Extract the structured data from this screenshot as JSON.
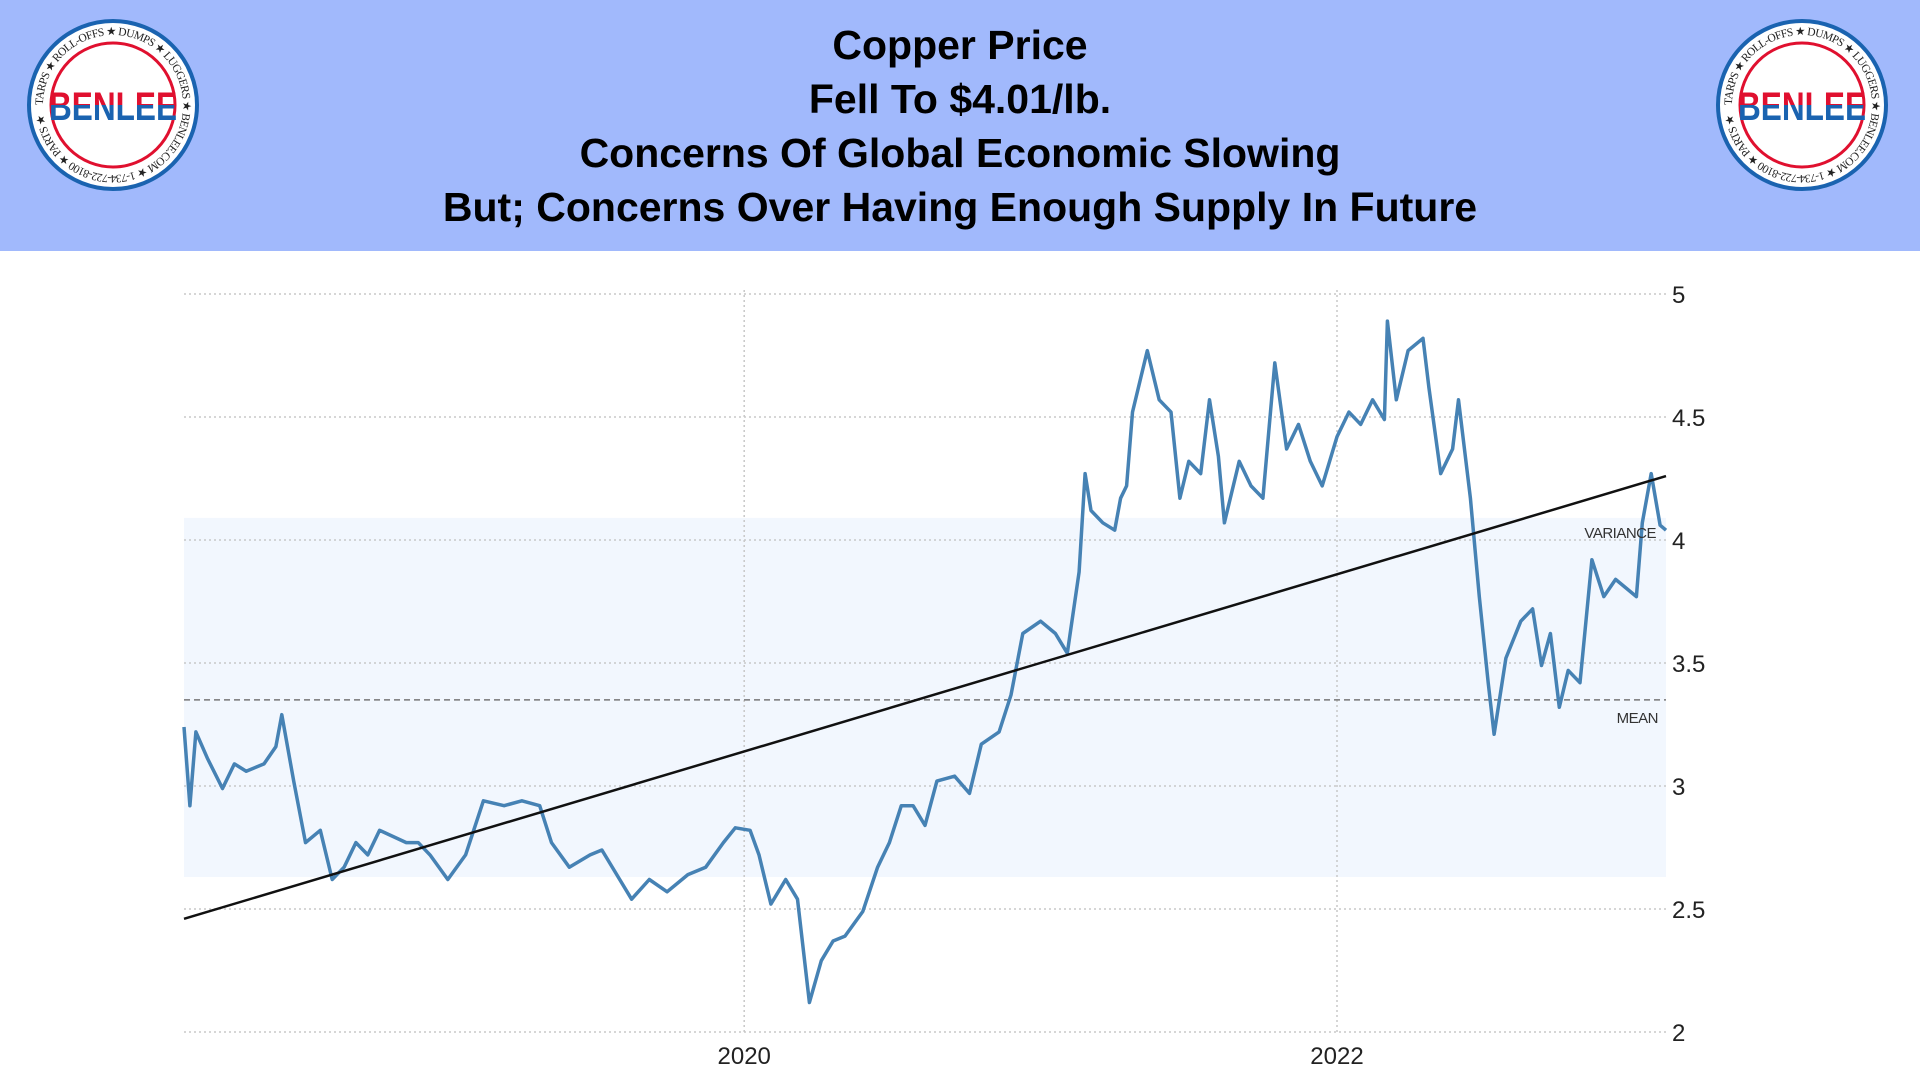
{
  "header": {
    "title_lines": [
      "Copper Price",
      "Fell To $4.01/lb.",
      "Concerns Of Global Economic Slowing",
      "But; Concerns Over Having Enough Supply In Future"
    ],
    "background_color": "#a1b9fc"
  },
  "logo": {
    "brand": "BENLEE",
    "ring_text": "TARPS ★ ROLL-OFFS ★ DUMPS ★ LUGGERS ★ BENLEE.COM ★ 1-734-722-8100 ★ PARTS ★",
    "colors": {
      "red": "#e0102f",
      "blue": "#1a63b0"
    }
  },
  "chart_data": {
    "type": "line",
    "title": "",
    "xlabel": "",
    "ylabel": "",
    "xlim": [
      2018.11,
      2023.11
    ],
    "ylim": [
      2,
      5
    ],
    "x_ticks": [
      "2020",
      "2022"
    ],
    "x_tick_values": [
      2020,
      2022
    ],
    "y_ticks": [
      "2",
      "2.5",
      "3",
      "3.5",
      "4",
      "4.5",
      "5"
    ],
    "y_tick_values": [
      2,
      2.5,
      3,
      3.5,
      4,
      4.5,
      5
    ],
    "grid": "dotted",
    "y_axis_side": "right",
    "series_color": "#4682b4",
    "series": [
      {
        "x": [
          2018.11,
          2018.13,
          2018.15,
          2018.19,
          2018.24,
          2018.28,
          2018.32,
          2018.38,
          2018.42,
          2018.44,
          2018.48,
          2018.52,
          2018.57,
          2018.61,
          2018.65,
          2018.69,
          2018.73,
          2018.77,
          2018.86,
          2018.9,
          2018.94,
          2019.0,
          2019.06,
          2019.12,
          2019.19,
          2019.25,
          2019.31,
          2019.35,
          2019.41,
          2019.48,
          2019.52,
          2019.58,
          2019.62,
          2019.68,
          2019.74,
          2019.81,
          2019.87,
          2019.93,
          2019.97,
          2020.02,
          2020.05,
          2020.09,
          2020.14,
          2020.18,
          2020.22,
          2020.26,
          2020.3,
          2020.34,
          2020.4,
          2020.45,
          2020.49,
          2020.53,
          2020.57,
          2020.61,
          2020.65,
          2020.71,
          2020.76,
          2020.8,
          2020.86,
          2020.9,
          2020.94,
          2021.0,
          2021.05,
          2021.09,
          2021.13,
          2021.15,
          2021.17,
          2021.21,
          2021.25,
          2021.27,
          2021.29,
          2021.31,
          2021.36,
          2021.4,
          2021.44,
          2021.47,
          2021.5,
          2021.54,
          2021.57,
          2021.6,
          2021.62,
          2021.67,
          2021.71,
          2021.75,
          2021.79,
          2021.83,
          2021.87,
          2021.91,
          2021.95,
          2022.0,
          2022.04,
          2022.08,
          2022.12,
          2022.16,
          2022.17,
          2022.2,
          2022.24,
          2022.29,
          2022.31,
          2022.35,
          2022.39,
          2022.41,
          2022.45,
          2022.48,
          2022.51,
          2022.53,
          2022.57,
          2022.62,
          2022.66,
          2022.69,
          2022.72,
          2022.75,
          2022.78,
          2022.82,
          2022.86,
          2022.9,
          2022.94,
          2023.01,
          2023.03,
          2023.06,
          2023.09,
          2023.11
        ],
        "values": [
          3.24,
          2.92,
          3.22,
          3.11,
          2.99,
          3.09,
          3.06,
          3.09,
          3.16,
          3.29,
          3.02,
          2.77,
          2.82,
          2.62,
          2.67,
          2.77,
          2.72,
          2.82,
          2.77,
          2.77,
          2.72,
          2.62,
          2.72,
          2.94,
          2.92,
          2.94,
          2.92,
          2.77,
          2.67,
          2.72,
          2.74,
          2.62,
          2.54,
          2.62,
          2.57,
          2.64,
          2.67,
          2.77,
          2.83,
          2.82,
          2.72,
          2.52,
          2.62,
          2.54,
          2.12,
          2.29,
          2.37,
          2.39,
          2.49,
          2.67,
          2.77,
          2.92,
          2.92,
          2.84,
          3.02,
          3.04,
          2.97,
          3.17,
          3.22,
          3.37,
          3.62,
          3.67,
          3.62,
          3.54,
          3.87,
          4.27,
          4.12,
          4.07,
          4.04,
          4.17,
          4.22,
          4.52,
          4.77,
          4.57,
          4.52,
          4.17,
          4.32,
          4.27,
          4.57,
          4.34,
          4.07,
          4.32,
          4.22,
          4.17,
          4.72,
          4.37,
          4.47,
          4.32,
          4.22,
          4.42,
          4.52,
          4.47,
          4.57,
          4.49,
          4.89,
          4.57,
          4.77,
          4.82,
          4.62,
          4.27,
          4.37,
          4.57,
          4.17,
          3.77,
          3.42,
          3.21,
          3.52,
          3.67,
          3.72,
          3.49,
          3.62,
          3.32,
          3.47,
          3.42,
          3.92,
          3.77,
          3.84,
          3.77,
          4.07,
          4.27,
          4.06,
          4.04
        ]
      }
    ],
    "trend_line": {
      "start": [
        2018.11,
        2.46
      ],
      "end": [
        2023.11,
        4.26
      ],
      "color": "#111111"
    },
    "mean": {
      "value": 3.35,
      "label": "MEAN"
    },
    "variance_band": {
      "low": 2.63,
      "high": 4.09,
      "label": "VARIANCE",
      "color": "#f2f7fe"
    }
  }
}
